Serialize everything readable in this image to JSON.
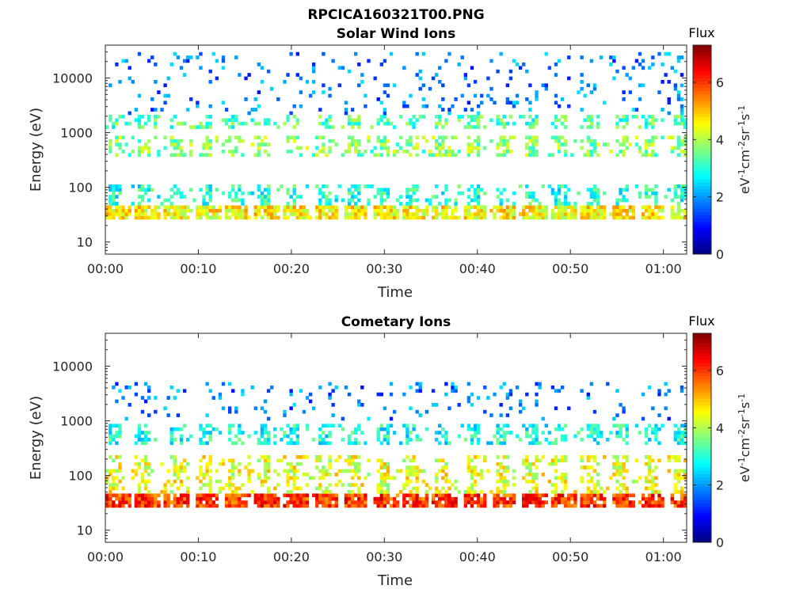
{
  "figure_title": "RPCICA160321T00.PNG",
  "chart_data": [
    {
      "type": "heatmap",
      "title": "Solar Wind Ions",
      "xlabel": "Time",
      "ylabel": "Energy (eV)",
      "x_ticks": [
        "00:00",
        "00:10",
        "00:20",
        "00:30",
        "00:40",
        "00:50",
        "01:00"
      ],
      "x_range_minutes": [
        0,
        62.5
      ],
      "y_scale": "log",
      "y_ticks": [
        "10",
        "100",
        "1000",
        "10000"
      ],
      "y_range": [
        6,
        40000
      ],
      "colorbar": {
        "title": "Flux",
        "label": "eV-1cm-2sr-1s-1",
        "ticks": [
          "0",
          "2",
          "4",
          "6"
        ],
        "range": [
          0,
          7.3
        ]
      },
      "colorscale": "jet",
      "scan_period_minutes": 3.2,
      "bands": [
        {
          "energy_range": [
            27,
            45
          ],
          "typical_flux": 4.6
        },
        {
          "energy_range": [
            50,
            120
          ],
          "typical_flux": 3.0
        },
        {
          "energy_range": [
            350,
            900
          ],
          "typical_flux": 3.7
        },
        {
          "energy_range": [
            1100,
            2000
          ],
          "typical_flux": 3.3
        },
        {
          "energy_range": [
            2000,
            30000
          ],
          "typical_flux": 1.8
        }
      ]
    },
    {
      "type": "heatmap",
      "title": "Cometary Ions",
      "xlabel": "Time",
      "ylabel": "Energy (eV)",
      "x_ticks": [
        "00:00",
        "00:10",
        "00:20",
        "00:30",
        "00:40",
        "00:50",
        "01:00"
      ],
      "x_range_minutes": [
        0,
        62.5
      ],
      "y_scale": "log",
      "y_ticks": [
        "10",
        "100",
        "1000",
        "10000"
      ],
      "y_range": [
        6,
        40000
      ],
      "colorbar": {
        "title": "Flux",
        "label": "eV-1cm-2sr-1s-1",
        "ticks": [
          "0",
          "2",
          "4",
          "6"
        ],
        "range": [
          0,
          7.3
        ]
      },
      "colorscale": "jet",
      "scan_period_minutes": 3.2,
      "bands": [
        {
          "energy_range": [
            27,
            45
          ],
          "typical_flux": 6.0
        },
        {
          "energy_range": [
            50,
            250
          ],
          "typical_flux": 4.4
        },
        {
          "energy_range": [
            350,
            900
          ],
          "typical_flux": 2.9
        },
        {
          "energy_range": [
            1000,
            5000
          ],
          "typical_flux": 1.8
        }
      ]
    }
  ]
}
